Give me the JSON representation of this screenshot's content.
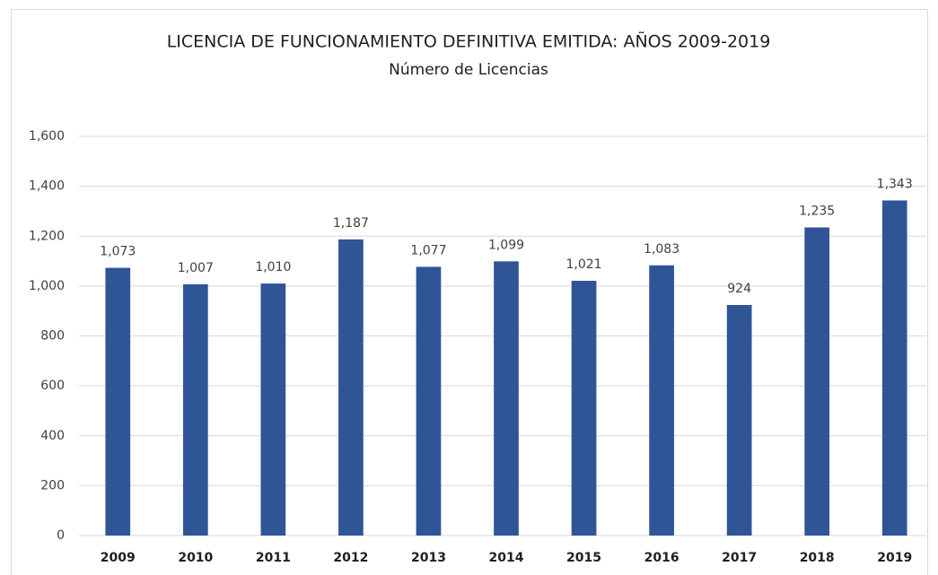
{
  "chart_data": {
    "type": "bar",
    "title": "LICENCIA DE FUNCIONAMIENTO DEFINITIVA EMITIDA: AÑOS 2009-2019",
    "subtitle": "Número de Licencias",
    "categories": [
      "2009",
      "2010",
      "2011",
      "2012",
      "2013",
      "2014",
      "2015",
      "2016",
      "2017",
      "2018",
      "2019"
    ],
    "values": [
      1073,
      1007,
      1010,
      1187,
      1077,
      1099,
      1021,
      1083,
      924,
      1235,
      1343
    ],
    "value_labels": [
      "1,073",
      "1,007",
      "1,010",
      "1,187",
      "1,077",
      "1,099",
      "1,021",
      "1,083",
      "924",
      "1,235",
      "1,343"
    ],
    "color": "#2f5597",
    "ylim": [
      0,
      1600
    ],
    "yticks": [
      0,
      200,
      400,
      600,
      800,
      {
        "value": 1000,
        "label": "1,000"
      },
      {
        "value": 1200,
        "label": "1,200"
      },
      {
        "value": 1400,
        "label": "1,400"
      },
      {
        "value": 1600,
        "label": "1,600"
      }
    ],
    "grid": true
  }
}
